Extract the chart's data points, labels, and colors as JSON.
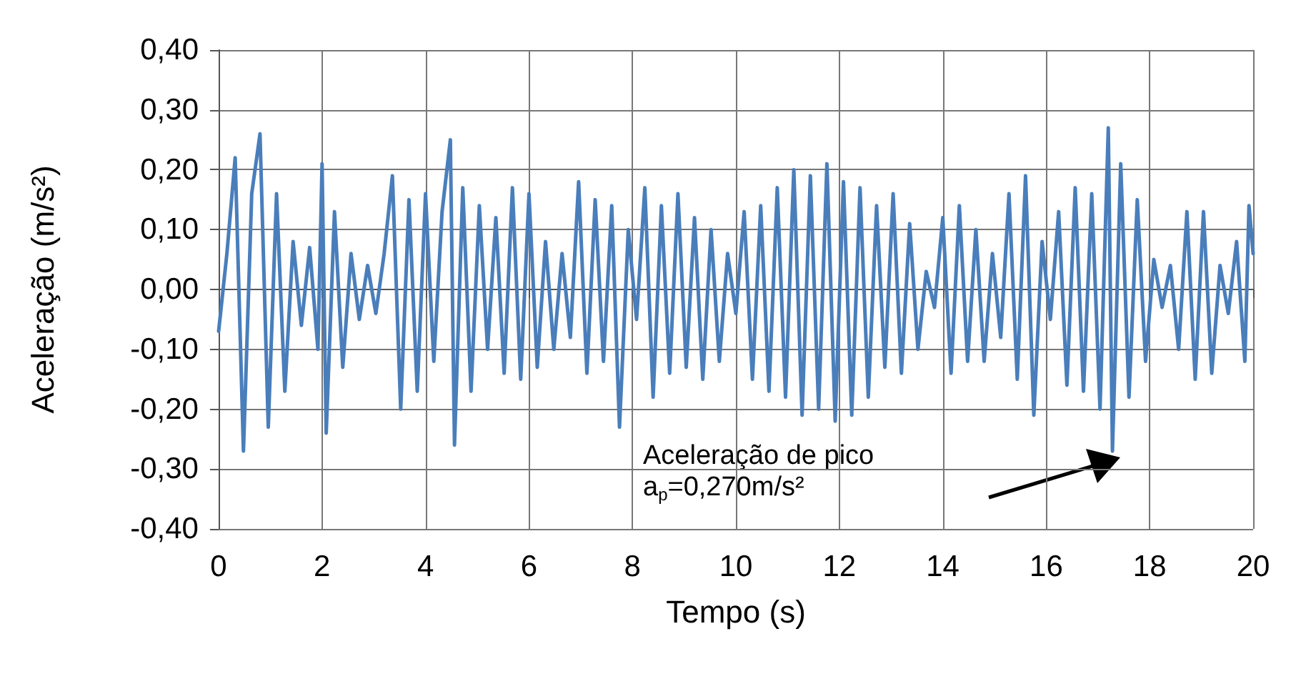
{
  "chart_data": {
    "type": "line",
    "xlabel": "Tempo (s)",
    "ylabel": "Aceleração (m/s²)",
    "x": [
      0,
      0.16,
      0.32,
      0.48,
      0.64,
      0.8,
      0.96,
      1.12,
      1.28,
      1.44,
      1.6,
      1.76,
      1.92,
      2,
      2.08,
      2.24,
      2.4,
      2.56,
      2.72,
      2.88,
      3.04,
      3.2,
      3.36,
      3.52,
      3.68,
      3.84,
      4,
      4.16,
      4.32,
      4.48,
      4.56,
      4.72,
      4.88,
      5.04,
      5.2,
      5.36,
      5.52,
      5.68,
      5.84,
      6,
      6.16,
      6.32,
      6.48,
      6.64,
      6.8,
      6.96,
      7.12,
      7.28,
      7.44,
      7.6,
      7.75,
      7.92,
      8.08,
      8.24,
      8.4,
      8.56,
      8.72,
      8.88,
      9.04,
      9.2,
      9.36,
      9.52,
      9.68,
      9.84,
      10,
      10.16,
      10.32,
      10.48,
      10.64,
      10.8,
      10.96,
      11.12,
      11.28,
      11.44,
      11.6,
      11.76,
      11.92,
      12.08,
      12.24,
      12.4,
      12.56,
      12.72,
      12.88,
      13.04,
      13.2,
      13.36,
      13.52,
      13.68,
      13.84,
      14,
      14.16,
      14.32,
      14.48,
      14.64,
      14.8,
      14.96,
      15.12,
      15.28,
      15.44,
      15.6,
      15.76,
      15.92,
      16.08,
      16.24,
      16.4,
      16.56,
      16.72,
      16.88,
      17.04,
      17.2,
      17.28,
      17.44,
      17.6,
      17.76,
      17.92,
      18.08,
      18.24,
      18.4,
      18.56,
      18.72,
      18.88,
      19.04,
      19.2,
      19.36,
      19.52,
      19.68,
      19.84,
      19.92,
      20
    ],
    "series": [
      {
        "color": "#4a7ebb",
        "values": [
          -0.07,
          0.06,
          0.22,
          -0.27,
          0.16,
          0.26,
          -0.23,
          0.16,
          -0.17,
          0.08,
          -0.06,
          0.07,
          -0.1,
          0.21,
          -0.24,
          0.13,
          -0.13,
          0.06,
          -0.05,
          0.04,
          -0.04,
          0.06,
          0.19,
          -0.2,
          0.15,
          -0.17,
          0.16,
          -0.12,
          0.13,
          0.25,
          -0.26,
          0.17,
          -0.17,
          0.14,
          -0.1,
          0.12,
          -0.14,
          0.17,
          -0.15,
          0.16,
          -0.13,
          0.08,
          -0.1,
          0.06,
          -0.08,
          0.18,
          -0.14,
          0.15,
          -0.12,
          0.14,
          -0.23,
          0.1,
          -0.05,
          0.17,
          -0.18,
          0.14,
          -0.14,
          0.16,
          -0.13,
          0.12,
          -0.15,
          0.1,
          -0.12,
          0.06,
          -0.04,
          0.13,
          -0.15,
          0.14,
          -0.17,
          0.17,
          -0.18,
          0.2,
          -0.21,
          0.19,
          -0.2,
          0.21,
          -0.22,
          0.18,
          -0.21,
          0.17,
          -0.18,
          0.14,
          -0.13,
          0.16,
          -0.14,
          0.11,
          -0.1,
          0.03,
          -0.03,
          0.12,
          -0.14,
          0.14,
          -0.12,
          0.1,
          -0.12,
          0.06,
          -0.08,
          0.16,
          -0.15,
          0.19,
          -0.21,
          0.08,
          -0.05,
          0.13,
          -0.16,
          0.17,
          -0.17,
          0.16,
          -0.2,
          0.27,
          -0.27,
          0.21,
          -0.18,
          0.15,
          -0.12,
          0.05,
          -0.03,
          0.04,
          -0.1,
          0.13,
          -0.15,
          0.13,
          -0.14,
          0.04,
          -0.04,
          0.08,
          -0.12,
          0.14,
          0.06
        ]
      }
    ],
    "xlim": [
      0,
      20
    ],
    "xticks": [
      0,
      2,
      4,
      6,
      8,
      10,
      12,
      14,
      16,
      18,
      20
    ],
    "ylim": [
      -0.4,
      0.4
    ],
    "yticks": [
      {
        "value": -0.4,
        "label": "-0,40"
      },
      {
        "value": -0.3,
        "label": "-0,30"
      },
      {
        "value": -0.2,
        "label": "-0,20"
      },
      {
        "value": -0.1,
        "label": "-0,10"
      },
      {
        "value": 0,
        "label": "0,00"
      },
      {
        "value": 0.1,
        "label": "0,10"
      },
      {
        "value": 0.2,
        "label": "0,20"
      },
      {
        "value": 0.3,
        "label": "0,30"
      },
      {
        "value": 0.4,
        "label": "0,40"
      }
    ],
    "grid": true,
    "marker": "none",
    "line_style": "solid",
    "annotations": [
      "Aceleração de pico\na$_{p}$=0,270m/s²"
    ]
  }
}
